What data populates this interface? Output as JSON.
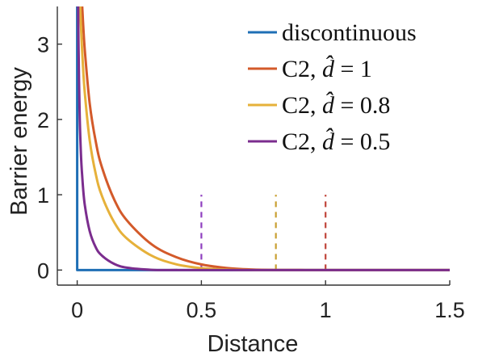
{
  "chart_data": {
    "type": "line",
    "xlabel": "Distance",
    "ylabel": "Barrier energy",
    "xlim": [
      -0.08,
      1.5
    ],
    "ylim": [
      -0.2,
      3.5
    ],
    "xticks": [
      "0",
      "0.5",
      "1",
      "1.5"
    ],
    "xtick_values": [
      0,
      0.5,
      1,
      1.5
    ],
    "yticks": [
      "0",
      "1",
      "2",
      "3"
    ],
    "ytick_values": [
      0,
      1,
      2,
      3
    ],
    "grid": false,
    "legend_position": "top-right",
    "series": [
      {
        "name": "discontinuous",
        "legend_prefix": "discontinuous",
        "legend_suffix": "",
        "color": "#1f6fb5",
        "x": [
          0,
          0,
          1.5
        ],
        "y": [
          3.5,
          0,
          0
        ]
      },
      {
        "name": "C2, d̂ = 1",
        "legend_prefix": "C2, ",
        "legend_suffix": " = 1",
        "color": "#d35a2a",
        "dhat": 1,
        "x": [
          0.02,
          0.03,
          0.05,
          0.075,
          0.1,
          0.15,
          0.2,
          0.3,
          0.4,
          0.5,
          0.6,
          0.7,
          0.8,
          0.9,
          1.0,
          1.5
        ],
        "y": [
          3.5,
          2.95,
          2.22,
          1.7,
          1.36,
          0.93,
          0.66,
          0.34,
          0.17,
          0.075,
          0.028,
          0.008,
          0.0014,
          0.0001,
          0,
          0
        ]
      },
      {
        "name": "C2, d̂ = 0.8",
        "legend_prefix": "C2, ",
        "legend_suffix": " = 0.8",
        "color": "#e6b13a",
        "dhat": 0.8,
        "x": [
          0.012,
          0.02,
          0.03,
          0.05,
          0.075,
          0.1,
          0.15,
          0.2,
          0.3,
          0.4,
          0.5,
          0.6,
          0.7,
          0.8,
          1.5
        ],
        "y": [
          3.5,
          2.9,
          2.38,
          1.73,
          1.27,
          0.98,
          0.63,
          0.42,
          0.19,
          0.076,
          0.025,
          0.0057,
          0.0005,
          0,
          0
        ]
      },
      {
        "name": "C2, d̂ = 0.5",
        "legend_prefix": "C2, ",
        "legend_suffix": " = 0.5",
        "color": "#7b2d8e",
        "dhat": 0.5,
        "x": [
          0.004,
          0.006,
          0.01,
          0.015,
          0.02,
          0.03,
          0.05,
          0.075,
          0.1,
          0.15,
          0.2,
          0.3,
          0.4,
          0.5,
          1.5
        ],
        "y": [
          3.5,
          2.8,
          2.05,
          1.55,
          1.25,
          0.88,
          0.52,
          0.3,
          0.19,
          0.08,
          0.032,
          0.003,
          0.0001,
          0,
          0
        ]
      }
    ],
    "vertical_lines": [
      {
        "x": 0.5,
        "color": "#8e3fbf",
        "style": "dashed",
        "y_top": 1.0
      },
      {
        "x": 0.8,
        "color": "#c9a033",
        "style": "dashed",
        "y_top": 1.0
      },
      {
        "x": 1.0,
        "color": "#c0453a",
        "style": "dashed",
        "y_top": 1.0
      }
    ]
  }
}
